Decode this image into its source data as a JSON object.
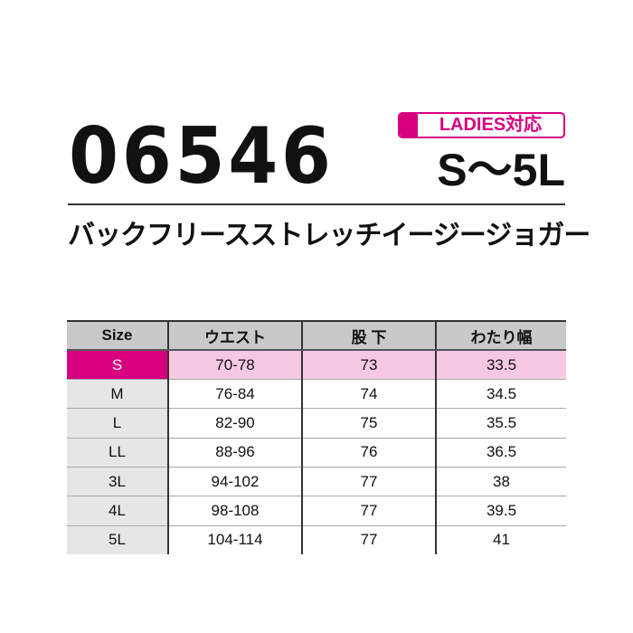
{
  "product": {
    "code": "06546",
    "badge": "LADIES対応",
    "size_range": "S〜5L",
    "name": "バックフリースストレッチイージージョガー"
  },
  "colors": {
    "accent": "#d6007f",
    "highlight_row": "#f6c8e4",
    "header": "#c9c9c9"
  },
  "table": {
    "headers": [
      "Size",
      "ウエスト",
      "股 下",
      "わたり幅"
    ],
    "rows": [
      [
        "S",
        "70-78",
        "73",
        "33.5"
      ],
      [
        "M",
        "76-84",
        "74",
        "34.5"
      ],
      [
        "L",
        "82-90",
        "75",
        "35.5"
      ],
      [
        "LL",
        "88-96",
        "76",
        "36.5"
      ],
      [
        "3L",
        "94-102",
        "77",
        "38"
      ],
      [
        "4L",
        "98-108",
        "77",
        "39.5"
      ],
      [
        "5L",
        "104-114",
        "77",
        "41"
      ]
    ]
  }
}
